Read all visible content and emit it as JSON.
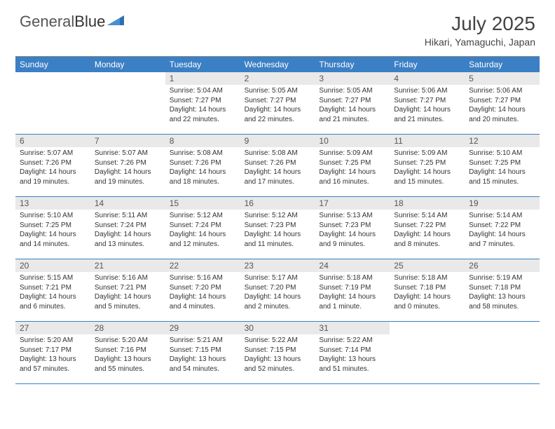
{
  "brand": {
    "part1": "General",
    "part2": "Blue"
  },
  "title": "July 2025",
  "location": "Hikari, Yamaguchi, Japan",
  "colors": {
    "header_bg": "#3b7fc4",
    "header_text": "#ffffff",
    "daynum_bg": "#e9e9e9",
    "border": "#3b7fc4",
    "logo_accent": "#2f6fb0"
  },
  "dayNames": [
    "Sunday",
    "Monday",
    "Tuesday",
    "Wednesday",
    "Thursday",
    "Friday",
    "Saturday"
  ],
  "layout": {
    "firstDayOffset": 2,
    "daysInMonth": 31
  },
  "days": {
    "1": {
      "sunrise": "5:04 AM",
      "sunset": "7:27 PM",
      "daylight": "14 hours and 22 minutes."
    },
    "2": {
      "sunrise": "5:05 AM",
      "sunset": "7:27 PM",
      "daylight": "14 hours and 22 minutes."
    },
    "3": {
      "sunrise": "5:05 AM",
      "sunset": "7:27 PM",
      "daylight": "14 hours and 21 minutes."
    },
    "4": {
      "sunrise": "5:06 AM",
      "sunset": "7:27 PM",
      "daylight": "14 hours and 21 minutes."
    },
    "5": {
      "sunrise": "5:06 AM",
      "sunset": "7:27 PM",
      "daylight": "14 hours and 20 minutes."
    },
    "6": {
      "sunrise": "5:07 AM",
      "sunset": "7:26 PM",
      "daylight": "14 hours and 19 minutes."
    },
    "7": {
      "sunrise": "5:07 AM",
      "sunset": "7:26 PM",
      "daylight": "14 hours and 19 minutes."
    },
    "8": {
      "sunrise": "5:08 AM",
      "sunset": "7:26 PM",
      "daylight": "14 hours and 18 minutes."
    },
    "9": {
      "sunrise": "5:08 AM",
      "sunset": "7:26 PM",
      "daylight": "14 hours and 17 minutes."
    },
    "10": {
      "sunrise": "5:09 AM",
      "sunset": "7:25 PM",
      "daylight": "14 hours and 16 minutes."
    },
    "11": {
      "sunrise": "5:09 AM",
      "sunset": "7:25 PM",
      "daylight": "14 hours and 15 minutes."
    },
    "12": {
      "sunrise": "5:10 AM",
      "sunset": "7:25 PM",
      "daylight": "14 hours and 15 minutes."
    },
    "13": {
      "sunrise": "5:10 AM",
      "sunset": "7:25 PM",
      "daylight": "14 hours and 14 minutes."
    },
    "14": {
      "sunrise": "5:11 AM",
      "sunset": "7:24 PM",
      "daylight": "14 hours and 13 minutes."
    },
    "15": {
      "sunrise": "5:12 AM",
      "sunset": "7:24 PM",
      "daylight": "14 hours and 12 minutes."
    },
    "16": {
      "sunrise": "5:12 AM",
      "sunset": "7:23 PM",
      "daylight": "14 hours and 11 minutes."
    },
    "17": {
      "sunrise": "5:13 AM",
      "sunset": "7:23 PM",
      "daylight": "14 hours and 9 minutes."
    },
    "18": {
      "sunrise": "5:14 AM",
      "sunset": "7:22 PM",
      "daylight": "14 hours and 8 minutes."
    },
    "19": {
      "sunrise": "5:14 AM",
      "sunset": "7:22 PM",
      "daylight": "14 hours and 7 minutes."
    },
    "20": {
      "sunrise": "5:15 AM",
      "sunset": "7:21 PM",
      "daylight": "14 hours and 6 minutes."
    },
    "21": {
      "sunrise": "5:16 AM",
      "sunset": "7:21 PM",
      "daylight": "14 hours and 5 minutes."
    },
    "22": {
      "sunrise": "5:16 AM",
      "sunset": "7:20 PM",
      "daylight": "14 hours and 4 minutes."
    },
    "23": {
      "sunrise": "5:17 AM",
      "sunset": "7:20 PM",
      "daylight": "14 hours and 2 minutes."
    },
    "24": {
      "sunrise": "5:18 AM",
      "sunset": "7:19 PM",
      "daylight": "14 hours and 1 minute."
    },
    "25": {
      "sunrise": "5:18 AM",
      "sunset": "7:18 PM",
      "daylight": "14 hours and 0 minutes."
    },
    "26": {
      "sunrise": "5:19 AM",
      "sunset": "7:18 PM",
      "daylight": "13 hours and 58 minutes."
    },
    "27": {
      "sunrise": "5:20 AM",
      "sunset": "7:17 PM",
      "daylight": "13 hours and 57 minutes."
    },
    "28": {
      "sunrise": "5:20 AM",
      "sunset": "7:16 PM",
      "daylight": "13 hours and 55 minutes."
    },
    "29": {
      "sunrise": "5:21 AM",
      "sunset": "7:15 PM",
      "daylight": "13 hours and 54 minutes."
    },
    "30": {
      "sunrise": "5:22 AM",
      "sunset": "7:15 PM",
      "daylight": "13 hours and 52 minutes."
    },
    "31": {
      "sunrise": "5:22 AM",
      "sunset": "7:14 PM",
      "daylight": "13 hours and 51 minutes."
    }
  },
  "labels": {
    "sunrise": "Sunrise:",
    "sunset": "Sunset:",
    "daylight": "Daylight:"
  }
}
